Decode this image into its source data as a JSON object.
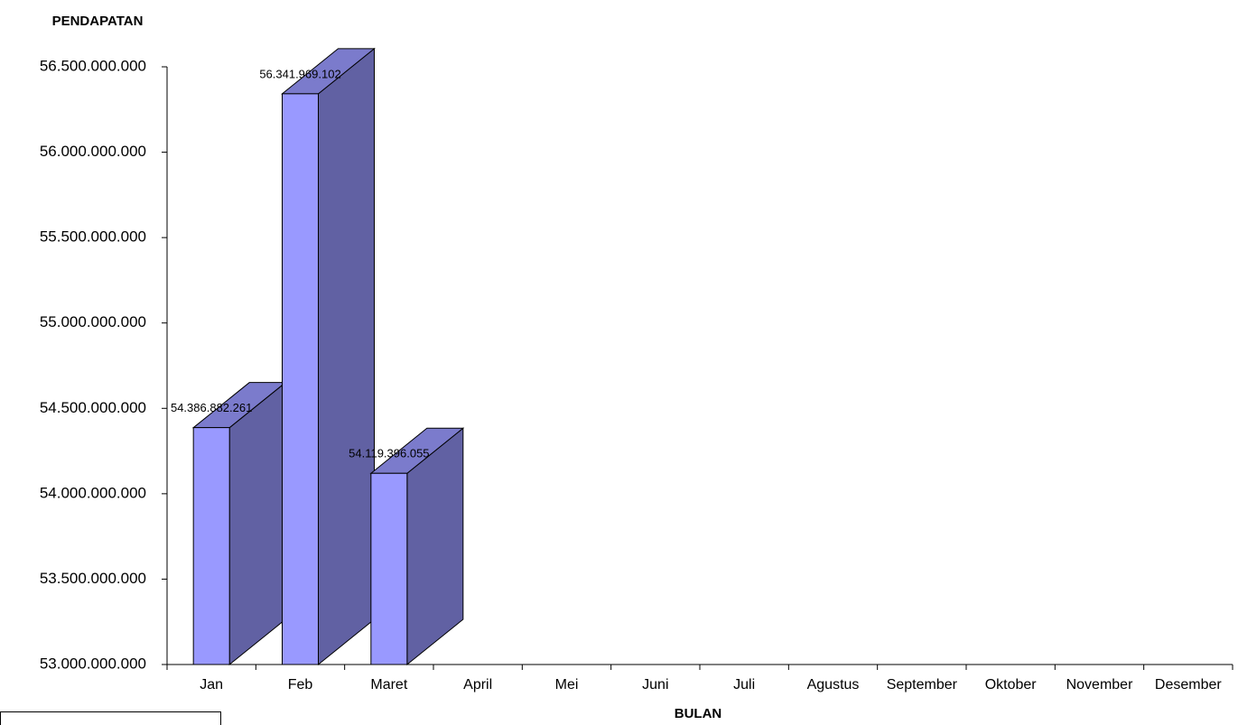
{
  "chart_data": {
    "type": "bar3d",
    "title": "PENDAPATAN",
    "x_label": "BULAN",
    "categories": [
      "Jan",
      "Feb",
      "Maret",
      "April",
      "Mei",
      "Juni",
      "Juli",
      "Agustus",
      "September",
      "Oktober",
      "November",
      "Desember"
    ],
    "values": [
      54386882261,
      56341969102,
      54119396055,
      null,
      null,
      null,
      null,
      null,
      null,
      null,
      null,
      null
    ],
    "value_labels": [
      "54.386.882.261",
      "56.341.969.102",
      "54.119.396.055",
      null,
      null,
      null,
      null,
      null,
      null,
      null,
      null,
      null
    ],
    "color": "#9999ff",
    "ylim": [
      53000000000,
      56500000000
    ],
    "yticks": [
      {
        "value": 53000000000,
        "label": "53.000.000.000"
      },
      {
        "value": 53500000000,
        "label": "53.500.000.000"
      },
      {
        "value": 54000000000,
        "label": "54.000.000.000"
      },
      {
        "value": 54500000000,
        "label": "54.500.000.000"
      },
      {
        "value": 55000000000,
        "label": "55.000.000.000"
      },
      {
        "value": 55500000000,
        "label": "55.500.000.000"
      },
      {
        "value": 56000000000,
        "label": "56.000.000.000"
      },
      {
        "value": 56500000000,
        "label": "56.500.000.000"
      }
    ],
    "grid": false
  }
}
